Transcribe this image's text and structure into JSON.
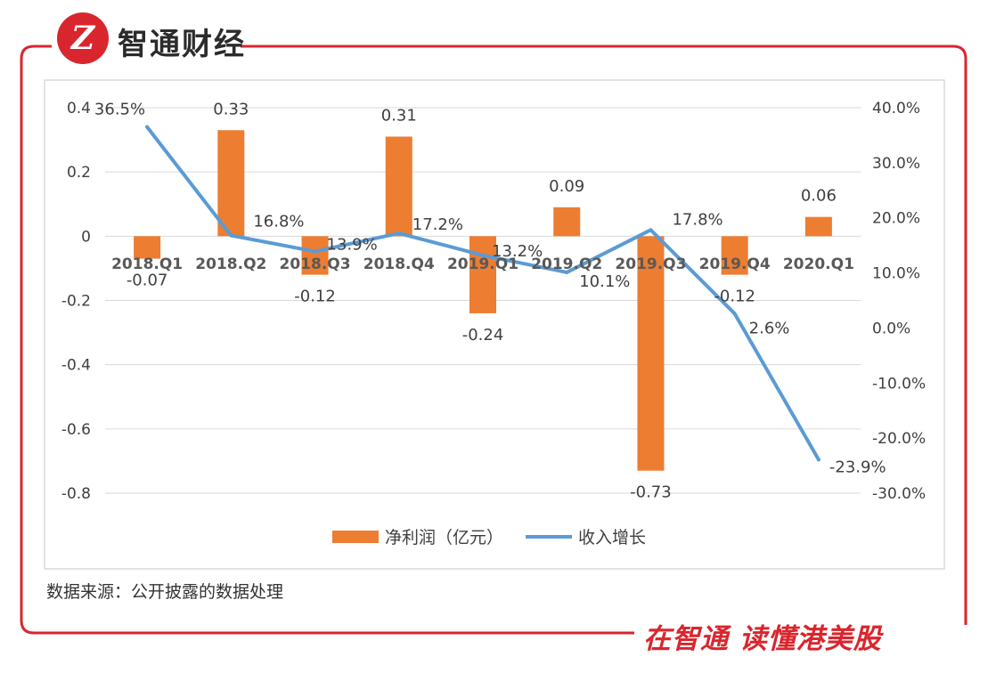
{
  "brand": {
    "name": "智通财经",
    "logo_letter": "Z",
    "slogan": "在智通 读懂港美股"
  },
  "source_note": "数据来源：公开披露的数据处理",
  "colors": {
    "bar": "#ed7d31",
    "line": "#5b9bd5",
    "frame": "#d9262e"
  },
  "chart_data": {
    "type": "bar",
    "categories": [
      "2018.Q1",
      "2018.Q2",
      "2018.Q3",
      "2018.Q4",
      "2019.Q1",
      "2019.Q2",
      "2019.Q3",
      "2019.Q4",
      "2020.Q1"
    ],
    "series": [
      {
        "name": "净利润（亿元）",
        "type": "bar",
        "axis": "left",
        "values": [
          -0.07,
          0.33,
          -0.12,
          0.31,
          -0.24,
          0.09,
          -0.73,
          -0.12,
          0.06
        ],
        "labels": [
          "-0.07",
          "0.33",
          "-0.12",
          "0.31",
          "-0.24",
          "0.09",
          "-0.73",
          "-0.12",
          "0.06"
        ]
      },
      {
        "name": "收入增长",
        "type": "line",
        "axis": "right",
        "values": [
          36.5,
          16.8,
          13.9,
          17.2,
          13.2,
          10.1,
          17.8,
          2.6,
          -23.9
        ],
        "labels": [
          "36.5%",
          "16.8%",
          "13.9%",
          "17.2%",
          "13.2%",
          "10.1%",
          "17.8%",
          "2.6%",
          "-23.9%"
        ]
      }
    ],
    "y_left": {
      "ticks": [
        "0.4",
        "0.2",
        "0",
        "-0.2",
        "-0.4",
        "-0.6",
        "-0.8"
      ],
      "range": [
        -0.8,
        0.4
      ]
    },
    "y_right": {
      "ticks": [
        "40.0%",
        "30.0%",
        "20.0%",
        "10.0%",
        "0.0%",
        "-10.0%",
        "-20.0%",
        "-30.0%"
      ],
      "range": [
        -30,
        40
      ]
    },
    "grid": true,
    "legend": "bottom"
  }
}
